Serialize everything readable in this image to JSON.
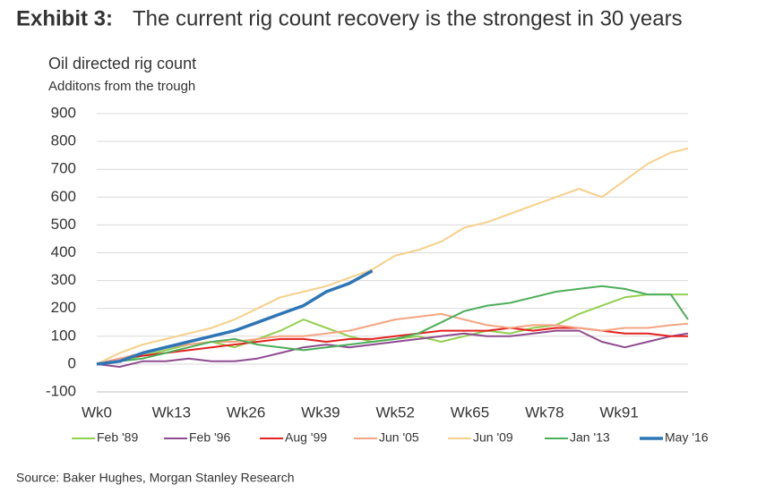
{
  "chart_data": {
    "type": "line",
    "title_label": "Exhibit 3:",
    "title": "The current rig count recovery is the strongest in 30 years",
    "y_label": "Oil directed rig count",
    "subtitle": "Additons from the trough",
    "source": "Source: Baker Hughes, Morgan Stanley Research",
    "x": [
      0,
      4,
      8,
      12,
      16,
      20,
      24,
      28,
      32,
      36,
      40,
      44,
      48,
      52,
      56,
      60,
      64,
      68,
      72,
      76,
      80,
      84,
      88,
      92,
      96,
      100,
      103
    ],
    "xlim": [
      0,
      103
    ],
    "xticks": [
      {
        "value": 0,
        "label": "Wk0"
      },
      {
        "value": 13,
        "label": "Wk13"
      },
      {
        "value": 26,
        "label": "Wk26"
      },
      {
        "value": 39,
        "label": "Wk39"
      },
      {
        "value": 52,
        "label": "Wk52"
      },
      {
        "value": 65,
        "label": "Wk65"
      },
      {
        "value": 78,
        "label": "Wk78"
      },
      {
        "value": 91,
        "label": "Wk91"
      }
    ],
    "ylim": [
      -100,
      900
    ],
    "yticks": [
      -100,
      0,
      100,
      200,
      300,
      400,
      500,
      600,
      700,
      800,
      900
    ],
    "grid": true,
    "legend": "bottom",
    "series": [
      {
        "name": "Feb '89",
        "color": "#92d050",
        "values": [
          0,
          10,
          30,
          50,
          70,
          80,
          60,
          90,
          120,
          160,
          130,
          100,
          80,
          90,
          100,
          80,
          100,
          120,
          110,
          130,
          140,
          180,
          210,
          240,
          250,
          250,
          250
        ]
      },
      {
        "name": "Feb '96",
        "color": "#8e4b8e",
        "values": [
          0,
          -10,
          10,
          10,
          20,
          10,
          10,
          20,
          40,
          60,
          70,
          60,
          70,
          80,
          90,
          100,
          110,
          100,
          100,
          110,
          120,
          120,
          80,
          60,
          80,
          100,
          110
        ]
      },
      {
        "name": "Aug '99",
        "color": "#e3211f",
        "values": [
          0,
          20,
          30,
          40,
          50,
          60,
          70,
          80,
          90,
          90,
          80,
          90,
          90,
          100,
          110,
          120,
          120,
          120,
          130,
          120,
          130,
          130,
          120,
          110,
          110,
          100,
          100
        ]
      },
      {
        "name": "Jun '05",
        "color": "#f4a582",
        "values": [
          0,
          20,
          40,
          60,
          70,
          80,
          80,
          90,
          100,
          100,
          110,
          120,
          140,
          160,
          170,
          180,
          160,
          140,
          130,
          140,
          140,
          130,
          120,
          130,
          130,
          140,
          145
        ]
      },
      {
        "name": "Jun '09",
        "color": "#f5d08a",
        "values": [
          0,
          40,
          70,
          90,
          110,
          130,
          160,
          200,
          240,
          260,
          280,
          310,
          340,
          390,
          410,
          440,
          490,
          510,
          540,
          570,
          600,
          630,
          600,
          660,
          720,
          760,
          775
        ]
      },
      {
        "name": "Jan '13",
        "color": "#4cae5a",
        "values": [
          0,
          10,
          20,
          40,
          60,
          80,
          90,
          70,
          60,
          50,
          60,
          70,
          80,
          90,
          110,
          150,
          190,
          210,
          220,
          240,
          260,
          270,
          280,
          270,
          250,
          250,
          160
        ]
      },
      {
        "name": "May '16",
        "color": "#2e75b6",
        "values": [
          0,
          10,
          40,
          60,
          80,
          100,
          120,
          150,
          180,
          210,
          260,
          290,
          335,
          null,
          null,
          null,
          null,
          null,
          null,
          null,
          null,
          null,
          null,
          null,
          null,
          null,
          null
        ]
      }
    ]
  }
}
